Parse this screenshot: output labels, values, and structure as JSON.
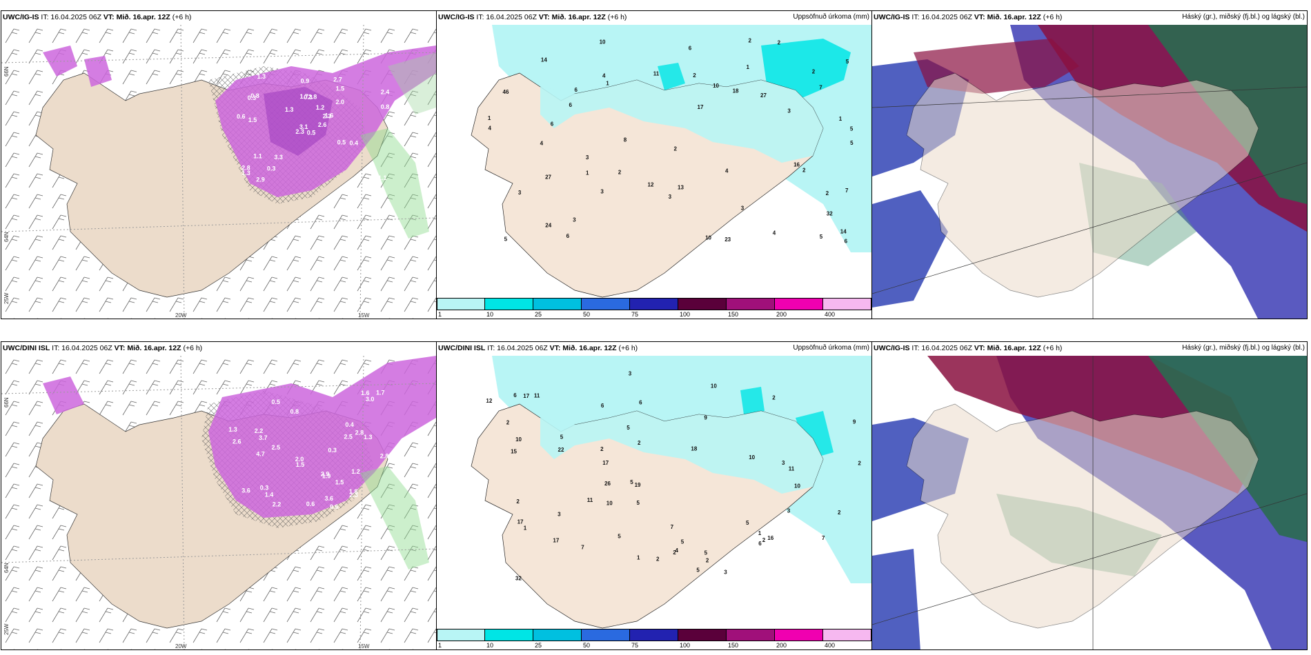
{
  "panels": {
    "p1": {
      "model": "UWC/IG-IS",
      "it": " IT: 16.04.2025 06Z ",
      "vt_label": "VT:",
      "vt": " Mið. 16.apr. 12Z",
      "lead": " (+6 h)"
    },
    "p2": {
      "model": "UWC/IG-IS",
      "it": " IT: 16.04.2025 06Z ",
      "vt_label": "VT:",
      "vt": " Mið. 16.apr. 12Z",
      "lead": " (+6 h)",
      "right_title": "Uppsöfnuð úrkoma (mm)"
    },
    "p3": {
      "model": "UWC/IG-IS",
      "it": " IT: 16.04.2025 06Z ",
      "vt_label": "VT:",
      "vt": " Mið. 16.apr. 12Z",
      "lead": " (+6 h)",
      "right_title": "Háský (gr.), miðský (fj.bl.) og lágský (bl.)"
    },
    "p4": {
      "model": "UWC/DINI ISL",
      "it": " IT: 16.04.2025 06Z ",
      "vt_label": "VT:",
      "vt": " Mið. 16.apr. 12Z",
      "lead": " (+6 h)"
    },
    "p5": {
      "model": "UWC/DINI ISL",
      "it": " IT: 16.04.2025 06Z ",
      "vt_label": "VT:",
      "vt": " Mið. 16.apr. 12Z",
      "lead": " (+6 h)",
      "right_title": "Uppsöfnuð úrkoma (mm)"
    },
    "p6": {
      "model": "UWC/IG-IS",
      "it": " IT: 16.04.2025 06Z ",
      "vt_label": "VT:",
      "vt": " Mið. 16.apr. 12Z",
      "lead": " (+6 h)",
      "right_title": "Háský (gr.), miðský (fj.bl.) og lágský (bl.)"
    }
  },
  "axes": {
    "lon_20w": "20W",
    "lon_15w": "15W",
    "lat_66n": "66N",
    "lat_64n": "64N",
    "lon_25w": "25W"
  },
  "colorbar": {
    "labels": [
      "1",
      "10",
      "25",
      "50",
      "75",
      "100",
      "150",
      "200",
      "400"
    ],
    "colors": [
      "#b8f5f5",
      "#00e5e5",
      "#00c0e0",
      "#2a6ae0",
      "#2222b0",
      "#5a003a",
      "#a0107a",
      "#f000b0",
      "#f6b8f0"
    ]
  },
  "precip_top": [
    "1",
    "1",
    "18",
    "5",
    "8",
    "7",
    "2",
    "2",
    "2",
    "2",
    "6",
    "2",
    "3",
    "3",
    "3",
    "2",
    "3",
    "1",
    "10",
    "11",
    "14",
    "2",
    "24",
    "27",
    "17",
    "2",
    "5",
    "3",
    "10",
    "5",
    "6",
    "6",
    "4",
    "6",
    "6",
    "4",
    "5",
    "4",
    "7",
    "16",
    "23",
    "46",
    "12",
    "13",
    "32",
    "14",
    "10",
    "27",
    "4",
    "3",
    "5",
    "6",
    "4",
    "1",
    "1",
    "3"
  ],
  "precip_bottom": [
    "1",
    "5",
    "18",
    "12",
    "2",
    "1",
    "4",
    "2",
    "3",
    "5",
    "3",
    "7",
    "2",
    "3",
    "2",
    "2",
    "1",
    "2",
    "2",
    "11",
    "11",
    "10",
    "22",
    "17",
    "5",
    "7",
    "10",
    "5",
    "6",
    "2",
    "6",
    "5",
    "3",
    "7",
    "6",
    "5",
    "17",
    "16",
    "19",
    "11",
    "32",
    "17",
    "26",
    "17",
    "15",
    "9",
    "10",
    "5",
    "3",
    "6",
    "2",
    "2",
    "5",
    "10",
    "9",
    "5",
    "10",
    "2"
  ],
  "snow_top": [
    "0.5",
    "0.3",
    "3.1",
    "2.8",
    "2.3",
    "3.3",
    "2.7",
    "2.8",
    "1.5",
    "2.6",
    "1.3",
    "1.1",
    "1.5",
    "2.4",
    "2.3",
    "2.0",
    "2.9",
    "1.7",
    "1.2",
    "1.1",
    "1.3",
    "1.3",
    "0.3",
    "0.3",
    "1.6",
    "0.4",
    "0.8",
    "0.9",
    "0.6",
    "0.5",
    "0.8"
  ],
  "snow_bottom": [
    "0.6",
    "0.5",
    "0.3",
    "2.2",
    "2.8",
    "3.6",
    "2.8",
    "2.5",
    "1.5",
    "1.4",
    "3.6",
    "1.3",
    "2.0",
    "2.9",
    "2.5",
    "1.6",
    "2.6",
    "3.0",
    "1.2",
    "1.3",
    "1.8",
    "1.9",
    "2.2",
    "2.3",
    "0.3",
    "0.4",
    "4.7",
    "3.7",
    "0.6",
    "0.8",
    "1.5",
    "1.7"
  ]
}
